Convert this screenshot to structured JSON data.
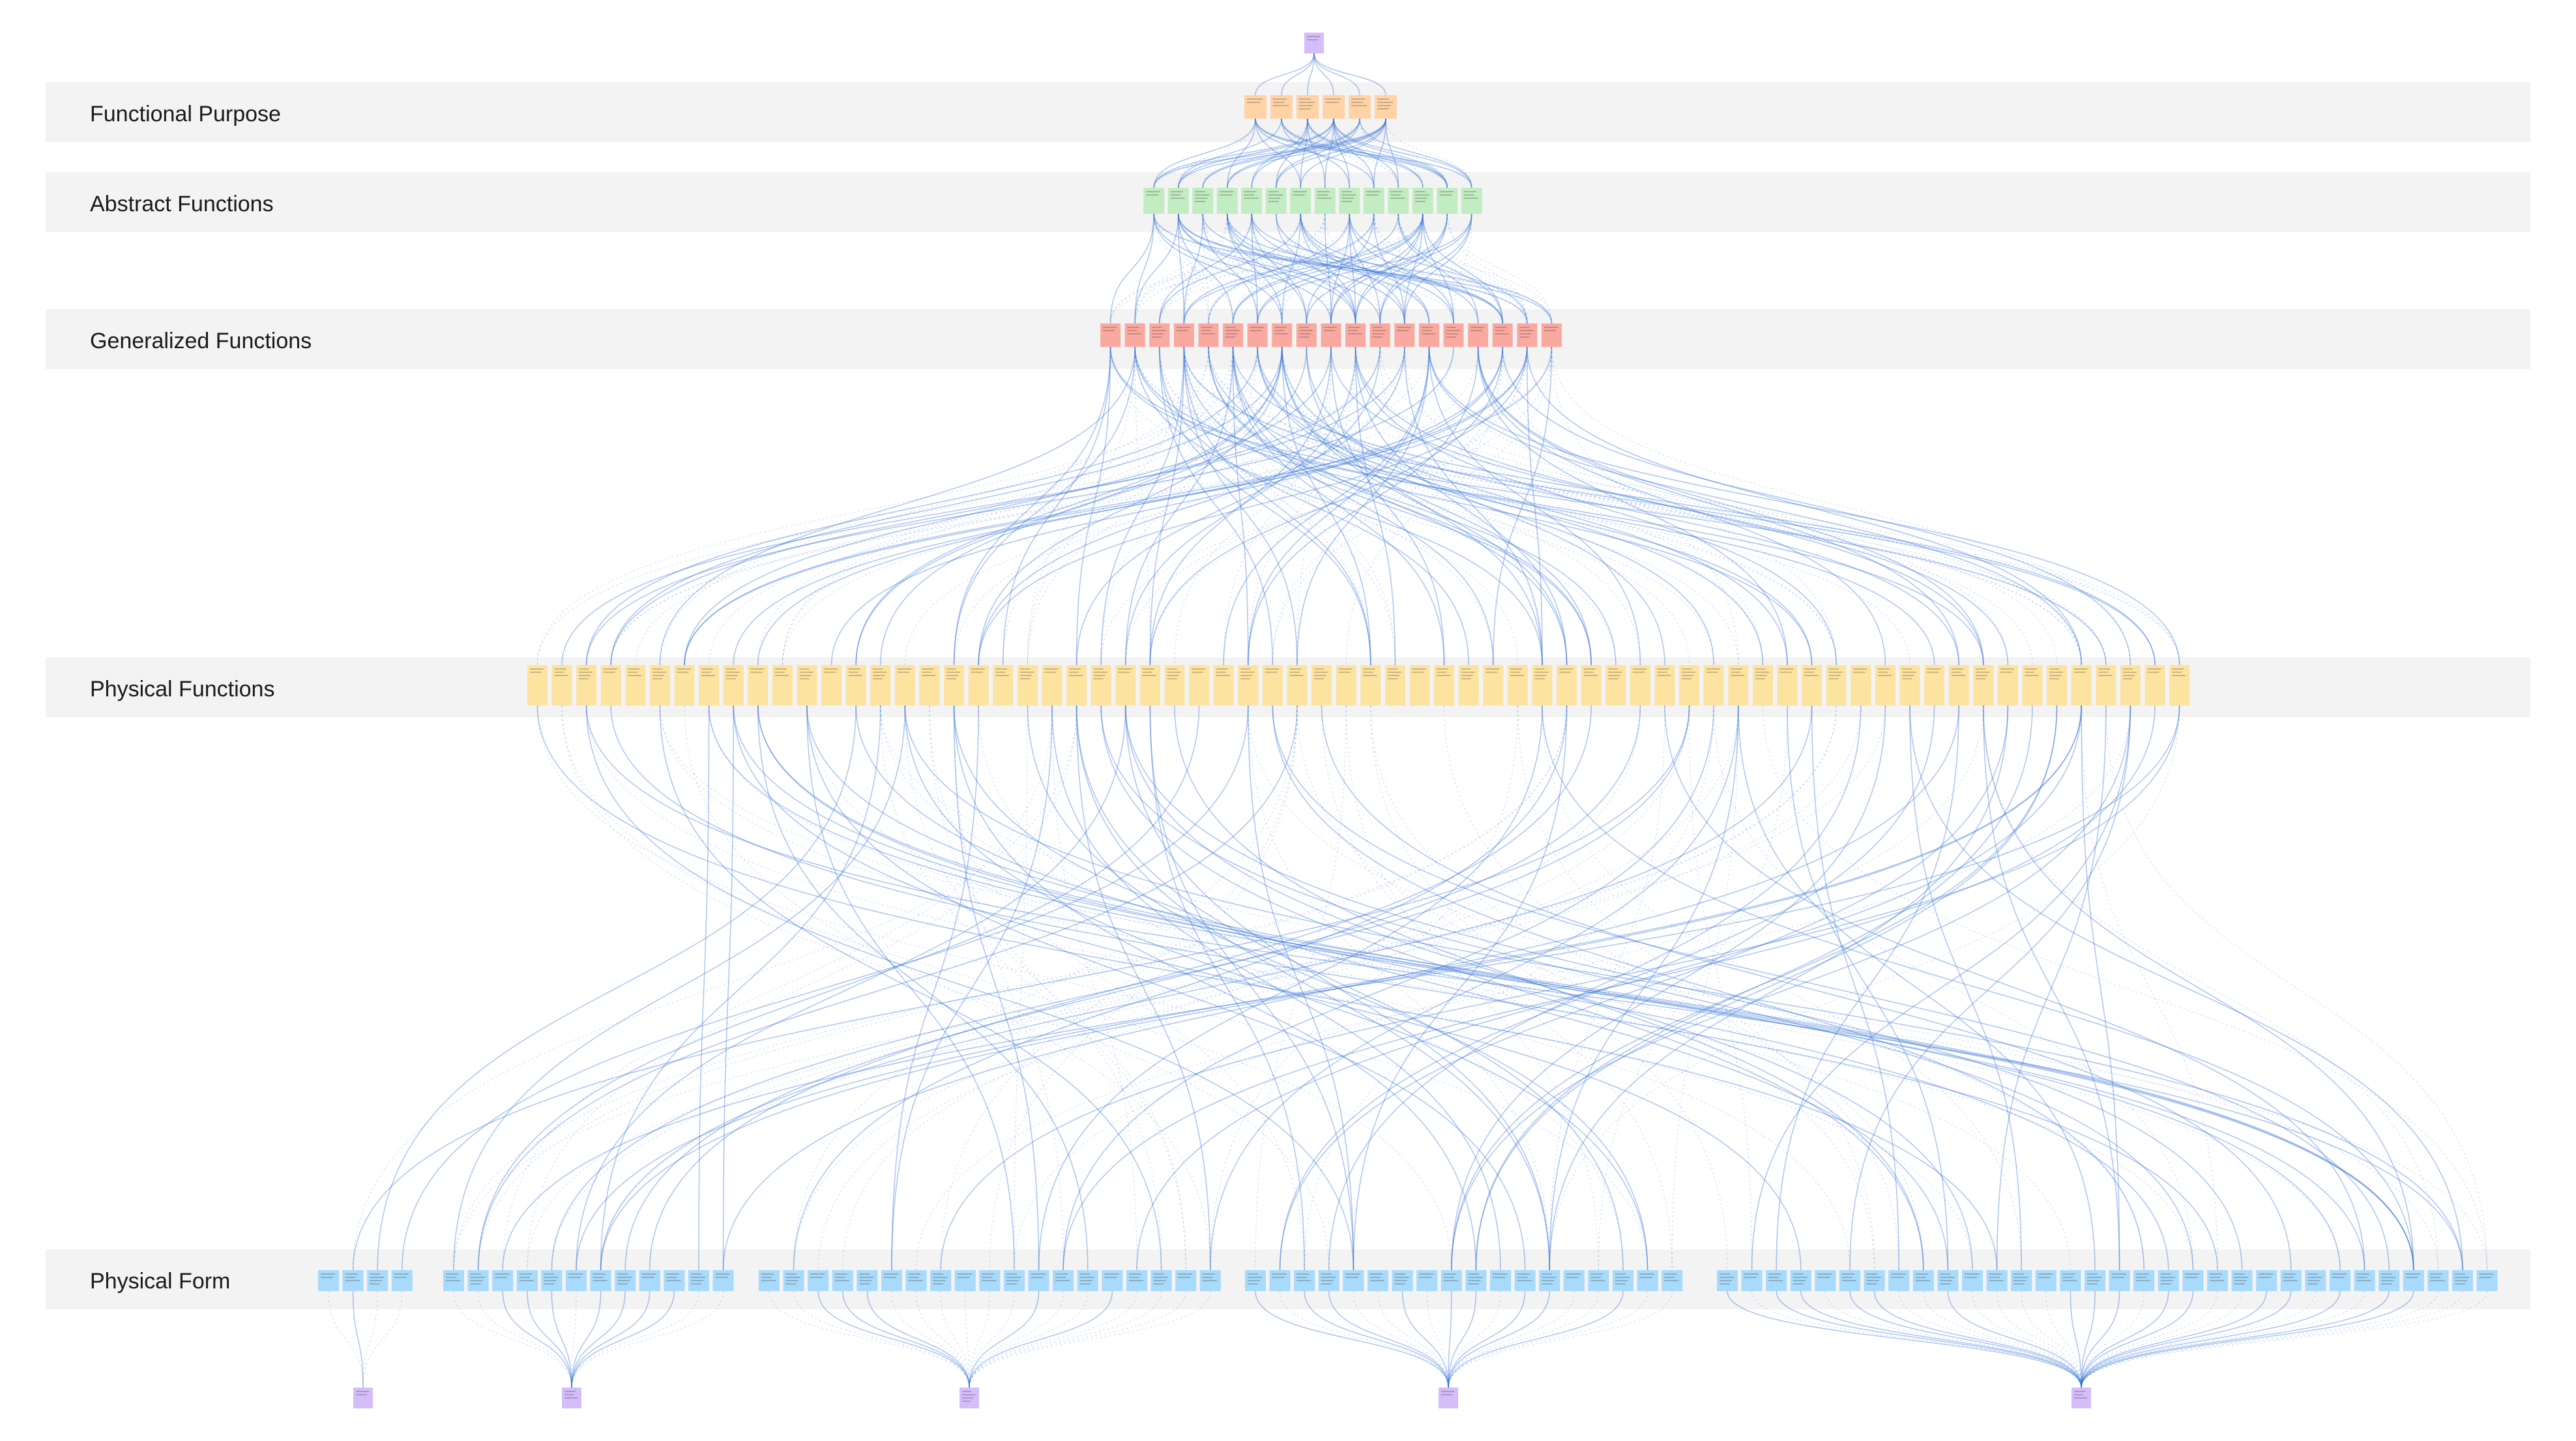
{
  "diagram": {
    "title": "",
    "levels": [
      {
        "label": "Functional Purpose"
      },
      {
        "label": "Abstract Functions"
      },
      {
        "label": "Generalized Functions"
      },
      {
        "label": "Physical Functions"
      },
      {
        "label": "Physical Form"
      }
    ],
    "node_colors": {
      "root": "#d5bdfa",
      "functional_purpose": "#ffd3a6",
      "abstract_functions": "#c2ecc2",
      "generalized_functions": "#f9a99f",
      "physical_functions": "#fde3a0",
      "physical_form": "#a7dafb",
      "groups": "#d5bdfa",
      "edges": "#2f6fd6"
    },
    "node_counts": {
      "root": 1,
      "functional_purpose": 6,
      "abstract_functions": 14,
      "generalized_functions": 19,
      "physical_functions": 68,
      "physical_form_groups": [
        4,
        12,
        19,
        18,
        32
      ],
      "bottom_groups": 5
    }
  }
}
